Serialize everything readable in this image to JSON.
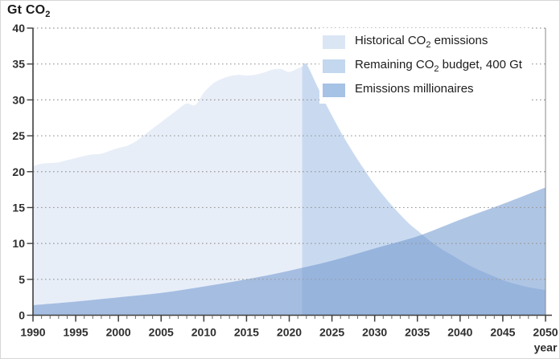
{
  "title": {
    "prefix": "Gt CO",
    "sub": "2"
  },
  "legend": {
    "items": [
      {
        "label_pre": "Historical CO",
        "label_sub": "2",
        "label_post": " emissions",
        "color": "#dbe6f5"
      },
      {
        "label_pre": "Remaining CO",
        "label_sub": "2",
        "label_post": " budget, 400 Gt",
        "color": "#c3d7ee"
      },
      {
        "label_pre": "Emissions millionaires",
        "label_sub": "",
        "label_post": "",
        "color": "#a6c2e5"
      }
    ]
  },
  "chart_data": {
    "type": "area",
    "title": "Gt CO2",
    "ylabel": "Gt CO2",
    "xlabel": "year",
    "x_range": [
      1990,
      2050
    ],
    "y_range": [
      0,
      40
    ],
    "x_ticks_major": [
      1990,
      1995,
      2000,
      2005,
      2010,
      2015,
      2020,
      2025,
      2030,
      2035,
      2040,
      2045,
      2050
    ],
    "x_minor_tick_step": 1,
    "y_ticks": [
      0,
      5,
      10,
      15,
      20,
      25,
      30,
      35,
      40
    ],
    "grid": {
      "horizontal": "dotted",
      "color": "#999999"
    },
    "axis_color": "#3f3f3f",
    "legend_position": "top-right",
    "series": [
      {
        "name": "Historical CO2 emissions",
        "color": "#e8eef8",
        "opacity": 1,
        "points": [
          [
            1990,
            20.8
          ],
          [
            1991,
            21.1
          ],
          [
            1992,
            21.2
          ],
          [
            1993,
            21.3
          ],
          [
            1994,
            21.6
          ],
          [
            1995,
            21.9
          ],
          [
            1996,
            22.2
          ],
          [
            1997,
            22.4
          ],
          [
            1998,
            22.5
          ],
          [
            1999,
            22.9
          ],
          [
            2000,
            23.3
          ],
          [
            2001,
            23.6
          ],
          [
            2002,
            24.2
          ],
          [
            2003,
            25.1
          ],
          [
            2004,
            26.0
          ],
          [
            2005,
            26.9
          ],
          [
            2006,
            27.8
          ],
          [
            2007,
            28.7
          ],
          [
            2008,
            29.5
          ],
          [
            2009,
            29.3
          ],
          [
            2010,
            31.0
          ],
          [
            2011,
            32.2
          ],
          [
            2012,
            32.9
          ],
          [
            2013,
            33.3
          ],
          [
            2014,
            33.5
          ],
          [
            2015,
            33.4
          ],
          [
            2016,
            33.5
          ],
          [
            2017,
            33.8
          ],
          [
            2018,
            34.2
          ],
          [
            2019,
            34.3
          ],
          [
            2020,
            33.9
          ],
          [
            2021,
            34.4
          ],
          [
            2021.5,
            34.6
          ]
        ]
      },
      {
        "name": "Remaining CO2 budget, 400 Gt",
        "color": "#c9daf0",
        "opacity": 1,
        "points": [
          [
            2021.5,
            34.6
          ],
          [
            2022,
            35.0
          ],
          [
            2023,
            32.6
          ],
          [
            2024,
            30.1
          ],
          [
            2025,
            27.8
          ],
          [
            2026,
            25.6
          ],
          [
            2027,
            23.6
          ],
          [
            2028,
            21.7
          ],
          [
            2029,
            19.9
          ],
          [
            2030,
            18.2
          ],
          [
            2031,
            16.7
          ],
          [
            2032,
            15.3
          ],
          [
            2033,
            14.0
          ],
          [
            2034,
            12.8
          ],
          [
            2035,
            11.8
          ],
          [
            2036,
            10.8
          ],
          [
            2037,
            9.9
          ],
          [
            2038,
            9.1
          ],
          [
            2039,
            8.4
          ],
          [
            2040,
            7.7
          ],
          [
            2041,
            7.0
          ],
          [
            2042,
            6.4
          ],
          [
            2043,
            5.9
          ],
          [
            2044,
            5.4
          ],
          [
            2045,
            4.9
          ],
          [
            2046,
            4.5
          ],
          [
            2047,
            4.2
          ],
          [
            2048,
            3.9
          ],
          [
            2049,
            3.7
          ],
          [
            2050,
            3.5
          ]
        ]
      },
      {
        "name": "Emissions millionaires",
        "color": "#6e96cd",
        "opacity": 0.55,
        "points": [
          [
            1990,
            1.4
          ],
          [
            1995,
            1.9
          ],
          [
            2000,
            2.5
          ],
          [
            2005,
            3.1
          ],
          [
            2010,
            4.0
          ],
          [
            2015,
            5.0
          ],
          [
            2020,
            6.2
          ],
          [
            2025,
            7.6
          ],
          [
            2030,
            9.3
          ],
          [
            2035,
            11.0
          ],
          [
            2040,
            13.3
          ],
          [
            2045,
            15.5
          ],
          [
            2050,
            17.8
          ]
        ]
      }
    ]
  }
}
